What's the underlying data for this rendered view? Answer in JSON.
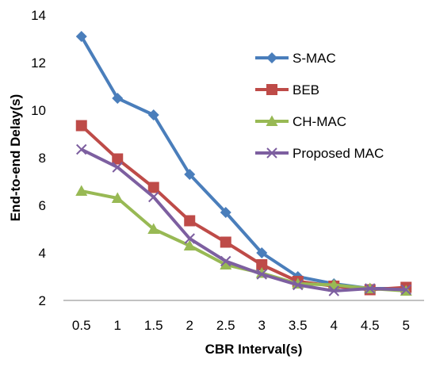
{
  "chart_data": {
    "type": "line",
    "title": "",
    "xlabel": "CBR Interval(s)",
    "ylabel": "End-to-end Delay(s)",
    "categories": [
      "0.5",
      "1",
      "1.5",
      "2",
      "2.5",
      "3",
      "3.5",
      "4",
      "4.5",
      "5"
    ],
    "ylim": [
      2,
      14
    ],
    "yticks": [
      "2",
      "4",
      "6",
      "8",
      "10",
      "12",
      "14"
    ],
    "grid": false,
    "legend": "right",
    "series": [
      {
        "name": "S-MAC",
        "color": "#4a7ebb",
        "marker": "diamond",
        "values": [
          13.1,
          10.5,
          9.8,
          7.3,
          5.7,
          4.0,
          3.0,
          2.7,
          2.5,
          2.5
        ]
      },
      {
        "name": "BEB",
        "color": "#be4b48",
        "marker": "square",
        "values": [
          9.35,
          7.95,
          6.75,
          5.35,
          4.45,
          3.5,
          2.8,
          2.6,
          2.45,
          2.55
        ]
      },
      {
        "name": "CH-MAC",
        "color": "#98b954",
        "marker": "triangle",
        "values": [
          6.6,
          6.3,
          5.0,
          4.3,
          3.5,
          3.15,
          2.7,
          2.65,
          2.5,
          2.4
        ]
      },
      {
        "name": "Proposed MAC",
        "color": "#7d5fa0",
        "marker": "x",
        "values": [
          8.35,
          7.6,
          6.35,
          4.6,
          3.65,
          3.1,
          2.65,
          2.4,
          2.5,
          2.45
        ]
      }
    ]
  }
}
